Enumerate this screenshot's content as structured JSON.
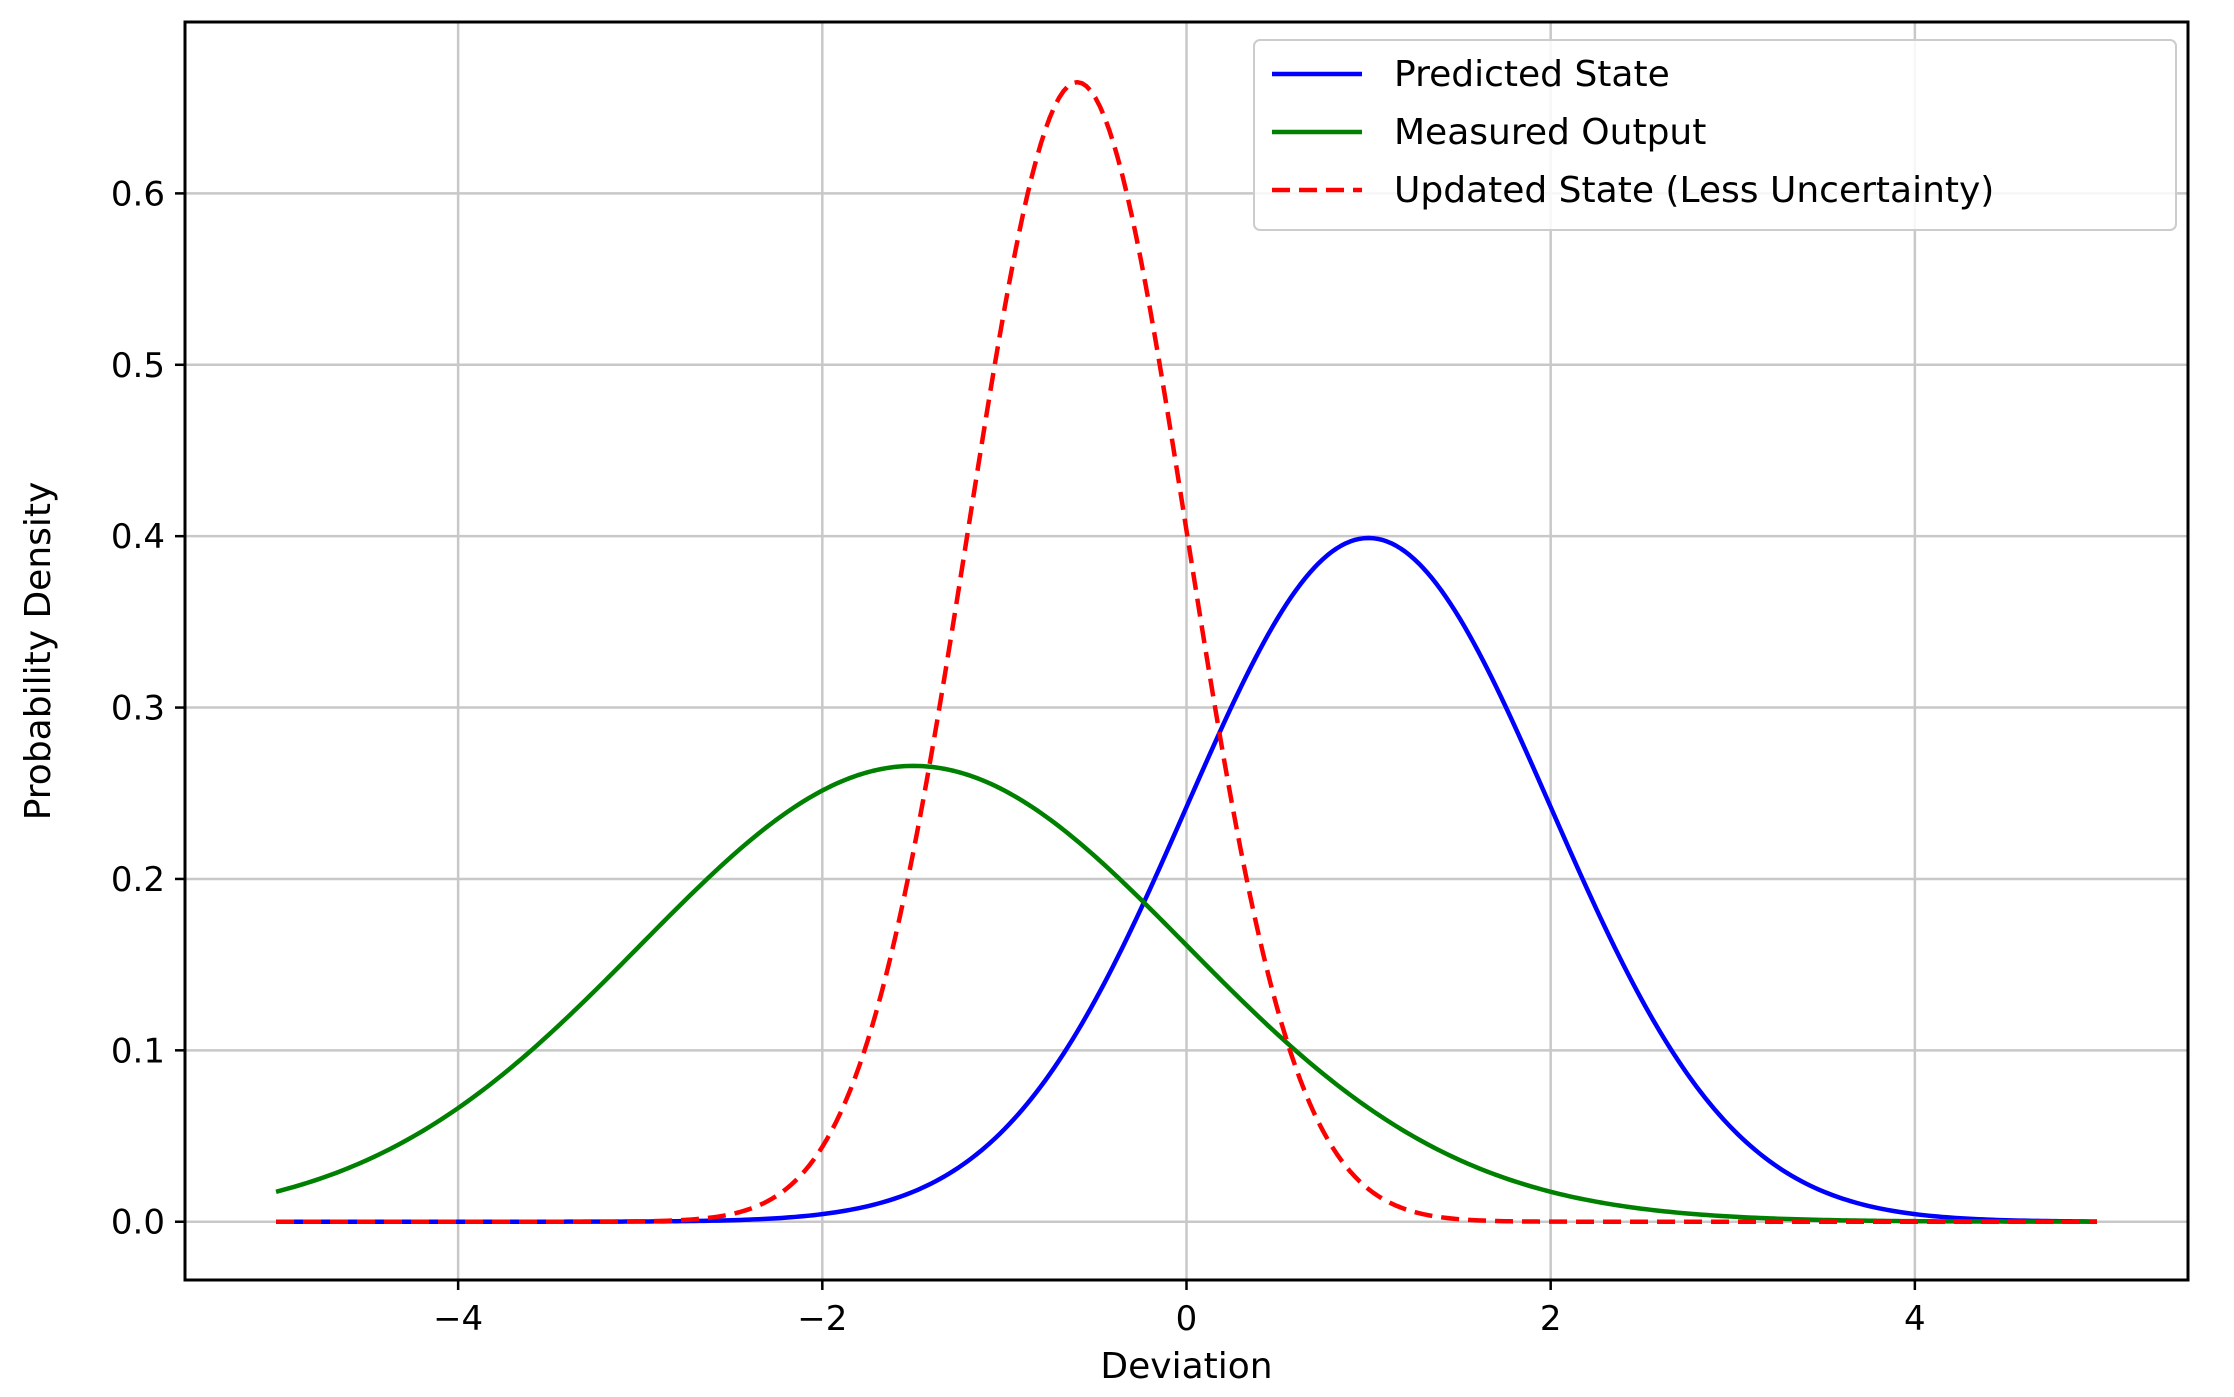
{
  "chart_data": {
    "type": "line",
    "xlabel": "Deviation",
    "ylabel": "Probability Density",
    "xlim": [
      -5.5,
      5.5
    ],
    "ylim": [
      -0.034,
      0.7
    ],
    "x_ticks": [
      -4,
      -2,
      0,
      2,
      4
    ],
    "x_tick_labels": [
      "−4",
      "−2",
      "0",
      "2",
      "4"
    ],
    "y_ticks": [
      0.0,
      0.1,
      0.2,
      0.3,
      0.4,
      0.5,
      0.6
    ],
    "y_tick_labels": [
      "0.0",
      "0.1",
      "0.2",
      "0.3",
      "0.4",
      "0.5",
      "0.6"
    ],
    "grid": true,
    "legend_position": "top-right",
    "x_range": [
      -5,
      5
    ],
    "series": [
      {
        "name": "Predicted State",
        "color": "#0000ff",
        "style": "solid",
        "distribution": "normal",
        "mean": 1.0,
        "std": 1.0,
        "peak": 0.399
      },
      {
        "name": "Measured Output",
        "color": "#008000",
        "style": "solid",
        "distribution": "normal",
        "mean": -1.5,
        "std": 1.5,
        "peak": 0.266
      },
      {
        "name": "Updated State (Less Uncertainty)",
        "color": "#ff0000",
        "style": "dashed",
        "distribution": "normal",
        "mean": -0.6,
        "std": 0.6,
        "peak": 0.665
      }
    ]
  }
}
